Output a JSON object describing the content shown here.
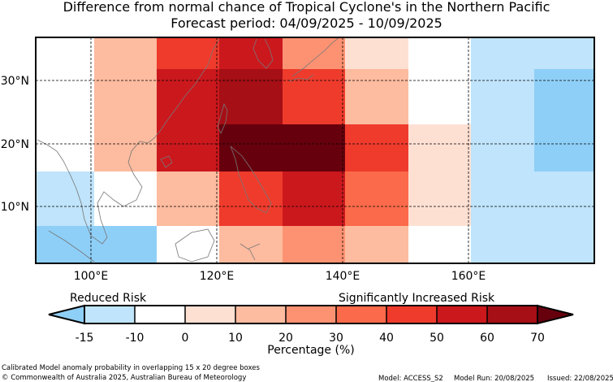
{
  "title_line1": "Difference from normal chance of Tropical Cyclone's in the Northern Pacific",
  "title_line2": "Forecast period: 04/09/2025 - 10/09/2025",
  "lat_labels": [
    "30°N",
    "20°N",
    "10°N"
  ],
  "lon_labels": [
    "100°E",
    "120°E",
    "140°E",
    "160°E"
  ],
  "legend": {
    "reduced_label": "Reduced Risk",
    "increased_label": "Significantly Increased Risk",
    "ticks": [
      "-15",
      "-10",
      "0",
      "10",
      "20",
      "30",
      "40",
      "50",
      "60",
      "70"
    ],
    "axis_label": "Percentage (%)",
    "colors": {
      "below": "#8ecff7",
      "neg15_neg10": "#bfe4fb",
      "neg10_0": "#ffffff",
      "0_10": "#fee0d3",
      "10_20": "#fdbb9f",
      "20_30": "#fc9272",
      "30_40": "#fb6a4a",
      "40_50": "#ef3b2c",
      "50_60": "#cb181d",
      "60_70": "#a50f15",
      "above": "#67000d"
    }
  },
  "footer": {
    "note": "Calibrated Model anomaly probability in overlapping 15 x 20 degree boxes",
    "copyright": "© Commonwealth of Australia 2025, Australian Bureau of Meteorology",
    "model": "Model: ACCESS_S2",
    "model_run": "Model Run: 20/08/2025",
    "issued": "Issued: 22/08/2025"
  }
}
